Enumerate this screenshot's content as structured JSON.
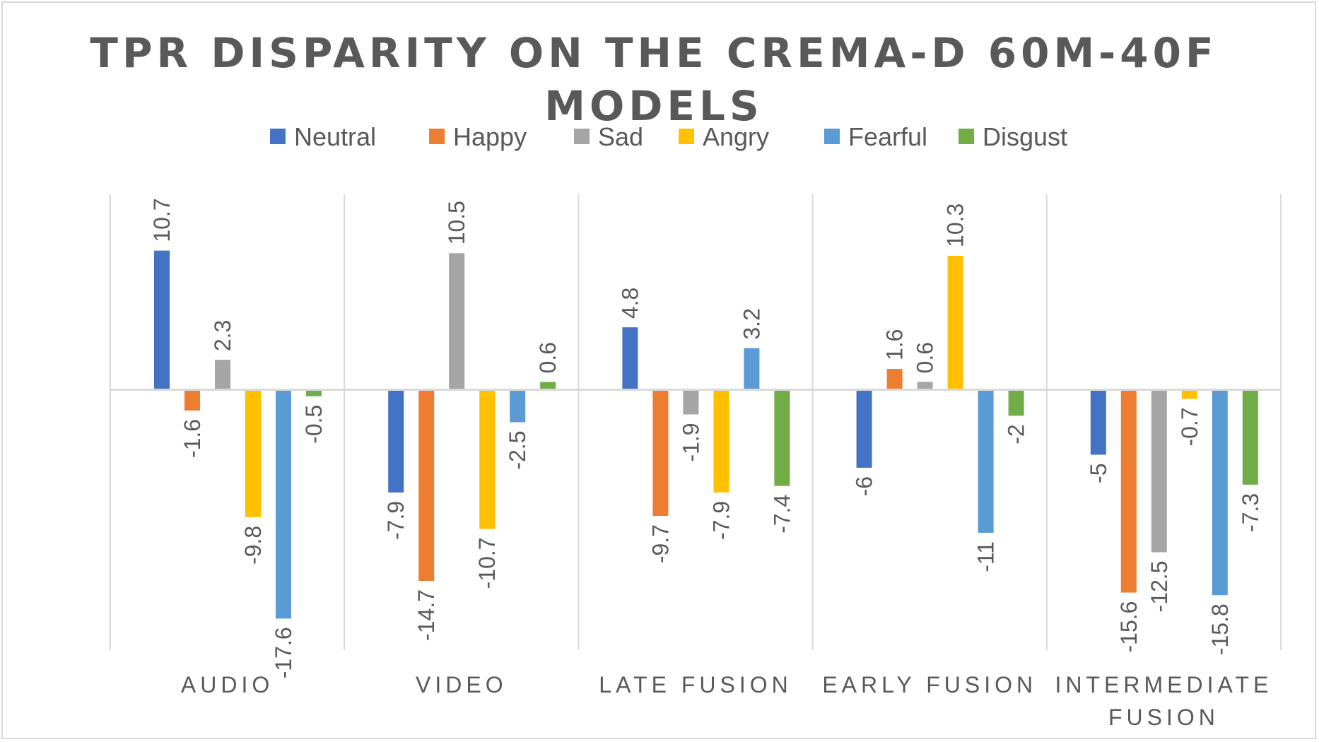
{
  "chart_data": {
    "type": "bar",
    "title_lines": [
      "TPR DISPARITY ON THE CREMA-D 60M-40F",
      "MODELS"
    ],
    "xlabel": "",
    "ylabel": "",
    "categories": [
      [
        "AUDIO"
      ],
      [
        "VIDEO"
      ],
      [
        "LATE FUSION"
      ],
      [
        "EARLY FUSION"
      ],
      [
        "INTERMEDIATE",
        "FUSION"
      ]
    ],
    "series": [
      {
        "name": "Neutral",
        "color": "#4472c4",
        "values": [
          10.7,
          -7.9,
          4.8,
          -6,
          -5
        ]
      },
      {
        "name": "Happy",
        "color": "#ed7d31",
        "values": [
          -1.6,
          -14.7,
          -9.7,
          1.6,
          -15.6
        ]
      },
      {
        "name": "Sad",
        "color": "#a5a5a5",
        "values": [
          2.3,
          10.5,
          -1.9,
          0.6,
          -12.5
        ]
      },
      {
        "name": "Angry",
        "color": "#ffc000",
        "values": [
          -9.8,
          -10.7,
          -7.9,
          10.3,
          -0.7
        ]
      },
      {
        "name": "Fearful",
        "color": "#5b9bd5",
        "values": [
          -17.6,
          -2.5,
          3.2,
          -11,
          -15.8
        ]
      },
      {
        "name": "Disgust",
        "color": "#70ad47",
        "values": [
          -0.5,
          0.6,
          -7.4,
          -2,
          -7.3
        ]
      }
    ],
    "ylim": [
      -20,
      15
    ],
    "legend_position": "top",
    "grid": "vertical category separators",
    "data_labels": "rotated"
  }
}
